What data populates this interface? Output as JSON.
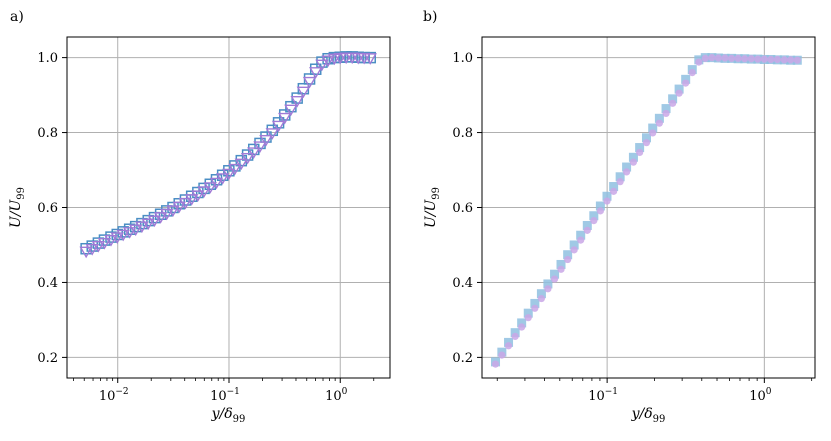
{
  "chart_data": [
    {
      "type": "scatter",
      "panel_label": "a)",
      "xlabel": "y/δ99",
      "ylabel": "U/U99",
      "xscale": "log",
      "xlim": [
        0.0035,
        2.8
      ],
      "ylim": [
        0.145,
        1.055
      ],
      "xticks": [
        {
          "value": 0.01,
          "base": "10",
          "exp": "−2"
        },
        {
          "value": 0.1,
          "base": "10",
          "exp": "−1"
        },
        {
          "value": 1,
          "base": "10",
          "exp": "0"
        }
      ],
      "yticks": [
        {
          "value": 0.2,
          "label": "0.2"
        },
        {
          "value": 0.4,
          "label": "0.4"
        },
        {
          "value": 0.6,
          "label": "0.6"
        },
        {
          "value": 0.8,
          "label": "0.8"
        },
        {
          "value": 1.0,
          "label": "1.0"
        }
      ],
      "grid": true,
      "series": [
        {
          "marker": "square-open",
          "color": "#4a8ec4",
          "x": [
            0.0052,
            0.0059,
            0.0067,
            0.0076,
            0.0087,
            0.0099,
            0.0112,
            0.0128,
            0.0145,
            0.0165,
            0.0188,
            0.0214,
            0.0243,
            0.0276,
            0.0314,
            0.0357,
            0.0406,
            0.0462,
            0.0525,
            0.0597,
            0.0679,
            0.0772,
            0.0877,
            0.0997,
            0.113,
            0.129,
            0.147,
            0.167,
            0.19,
            0.215,
            0.245,
            0.279,
            0.317,
            0.36,
            0.41,
            0.466,
            0.53,
            0.602,
            0.685,
            0.778,
            0.885,
            1.0,
            1.13,
            1.28,
            1.45,
            1.64,
            1.86
          ],
          "y": [
            0.49,
            0.497,
            0.505,
            0.513,
            0.521,
            0.528,
            0.535,
            0.542,
            0.549,
            0.557,
            0.565,
            0.573,
            0.582,
            0.591,
            0.6,
            0.61,
            0.62,
            0.63,
            0.64,
            0.651,
            0.662,
            0.674,
            0.686,
            0.698,
            0.711,
            0.725,
            0.74,
            0.755,
            0.771,
            0.788,
            0.806,
            0.826,
            0.847,
            0.869,
            0.892,
            0.917,
            0.943,
            0.969,
            0.988,
            0.997,
            1.0,
            1.001,
            1.002,
            1.002,
            1.001,
            1.0,
            1.0
          ]
        },
        {
          "marker": "triangle-down-open",
          "color": "#a07ad6",
          "x": [
            0.0052,
            0.0059,
            0.0067,
            0.0076,
            0.0087,
            0.0099,
            0.0112,
            0.0128,
            0.0145,
            0.0165,
            0.0188,
            0.0214,
            0.0243,
            0.0276,
            0.0314,
            0.0357,
            0.0406,
            0.0462,
            0.0525,
            0.0597,
            0.0679,
            0.0772,
            0.0877,
            0.0997,
            0.113,
            0.129,
            0.147,
            0.167,
            0.19,
            0.215,
            0.245,
            0.279,
            0.317,
            0.36,
            0.41,
            0.466,
            0.53,
            0.602,
            0.685,
            0.778,
            0.885,
            1.0,
            1.13,
            1.28,
            1.45,
            1.64,
            1.86
          ],
          "y": [
            0.483,
            0.49,
            0.498,
            0.506,
            0.514,
            0.521,
            0.528,
            0.535,
            0.542,
            0.55,
            0.558,
            0.566,
            0.575,
            0.584,
            0.593,
            0.603,
            0.613,
            0.623,
            0.633,
            0.644,
            0.655,
            0.667,
            0.679,
            0.691,
            0.704,
            0.718,
            0.733,
            0.748,
            0.764,
            0.781,
            0.799,
            0.819,
            0.84,
            0.862,
            0.885,
            0.91,
            0.936,
            0.962,
            0.982,
            0.993,
            0.998,
            1.0,
            1.001,
            1.001,
            1.0,
            1.0,
            0.999
          ]
        }
      ]
    },
    {
      "type": "scatter",
      "panel_label": "b)",
      "xlabel": "y/δ99",
      "ylabel": "U/U99",
      "xscale": "log",
      "xlim": [
        0.016,
        2.1
      ],
      "ylim": [
        0.145,
        1.055
      ],
      "xticks": [
        {
          "value": 0.1,
          "base": "10",
          "exp": "−1"
        },
        {
          "value": 1,
          "base": "10",
          "exp": "0"
        }
      ],
      "yticks": [
        {
          "value": 0.2,
          "label": "0.2"
        },
        {
          "value": 0.4,
          "label": "0.4"
        },
        {
          "value": 0.6,
          "label": "0.6"
        },
        {
          "value": 0.8,
          "label": "0.8"
        },
        {
          "value": 1.0,
          "label": "1.0"
        }
      ],
      "grid": true,
      "series": [
        {
          "marker": "square-filled",
          "color": "#8fbfe0",
          "x": [
            0.0195,
            0.0214,
            0.0236,
            0.026,
            0.0286,
            0.0315,
            0.0347,
            0.0382,
            0.042,
            0.0463,
            0.0509,
            0.0561,
            0.0617,
            0.0679,
            0.0748,
            0.0823,
            0.0906,
            0.0998,
            0.11,
            0.121,
            0.133,
            0.147,
            0.161,
            0.178,
            0.195,
            0.215,
            0.237,
            0.261,
            0.287,
            0.316,
            0.348,
            0.383,
            0.421,
            0.464,
            0.51,
            0.562,
            0.619,
            0.681,
            0.75,
            0.826,
            0.909,
            1.0,
            1.1,
            1.21,
            1.34,
            1.47,
            1.62
          ],
          "y": [
            0.188,
            0.214,
            0.24,
            0.266,
            0.292,
            0.318,
            0.344,
            0.37,
            0.396,
            0.422,
            0.448,
            0.474,
            0.5,
            0.526,
            0.552,
            0.578,
            0.604,
            0.63,
            0.656,
            0.682,
            0.708,
            0.734,
            0.76,
            0.786,
            0.812,
            0.838,
            0.864,
            0.89,
            0.916,
            0.942,
            0.968,
            0.994,
            1.0,
            1.0,
            0.999,
            0.998,
            0.998,
            0.997,
            0.997,
            0.996,
            0.996,
            0.995,
            0.995,
            0.994,
            0.994,
            0.993,
            0.993
          ]
        },
        {
          "marker": "circle-filled",
          "color": "#c9a7e6",
          "x": [
            0.0195,
            0.0214,
            0.0236,
            0.026,
            0.0286,
            0.0315,
            0.0347,
            0.0382,
            0.042,
            0.0463,
            0.0509,
            0.0561,
            0.0617,
            0.0679,
            0.0748,
            0.0823,
            0.0906,
            0.0998,
            0.11,
            0.121,
            0.133,
            0.147,
            0.161,
            0.178,
            0.195,
            0.215,
            0.237,
            0.261,
            0.287,
            0.316,
            0.348,
            0.383,
            0.421,
            0.464,
            0.51,
            0.562,
            0.619,
            0.681,
            0.75,
            0.826,
            0.909,
            1.0,
            1.1,
            1.21,
            1.34,
            1.47,
            1.62
          ],
          "y": [
            0.182,
            0.206,
            0.231,
            0.256,
            0.281,
            0.306,
            0.331,
            0.357,
            0.383,
            0.409,
            0.435,
            0.461,
            0.487,
            0.513,
            0.539,
            0.565,
            0.591,
            0.617,
            0.643,
            0.669,
            0.695,
            0.721,
            0.747,
            0.773,
            0.799,
            0.825,
            0.851,
            0.878,
            0.905,
            0.932,
            0.96,
            0.988,
            0.998,
            1.0,
            0.999,
            0.999,
            0.998,
            0.998,
            0.997,
            0.997,
            0.996,
            0.996,
            0.995,
            0.995,
            0.994,
            0.994,
            0.993
          ]
        }
      ]
    }
  ]
}
